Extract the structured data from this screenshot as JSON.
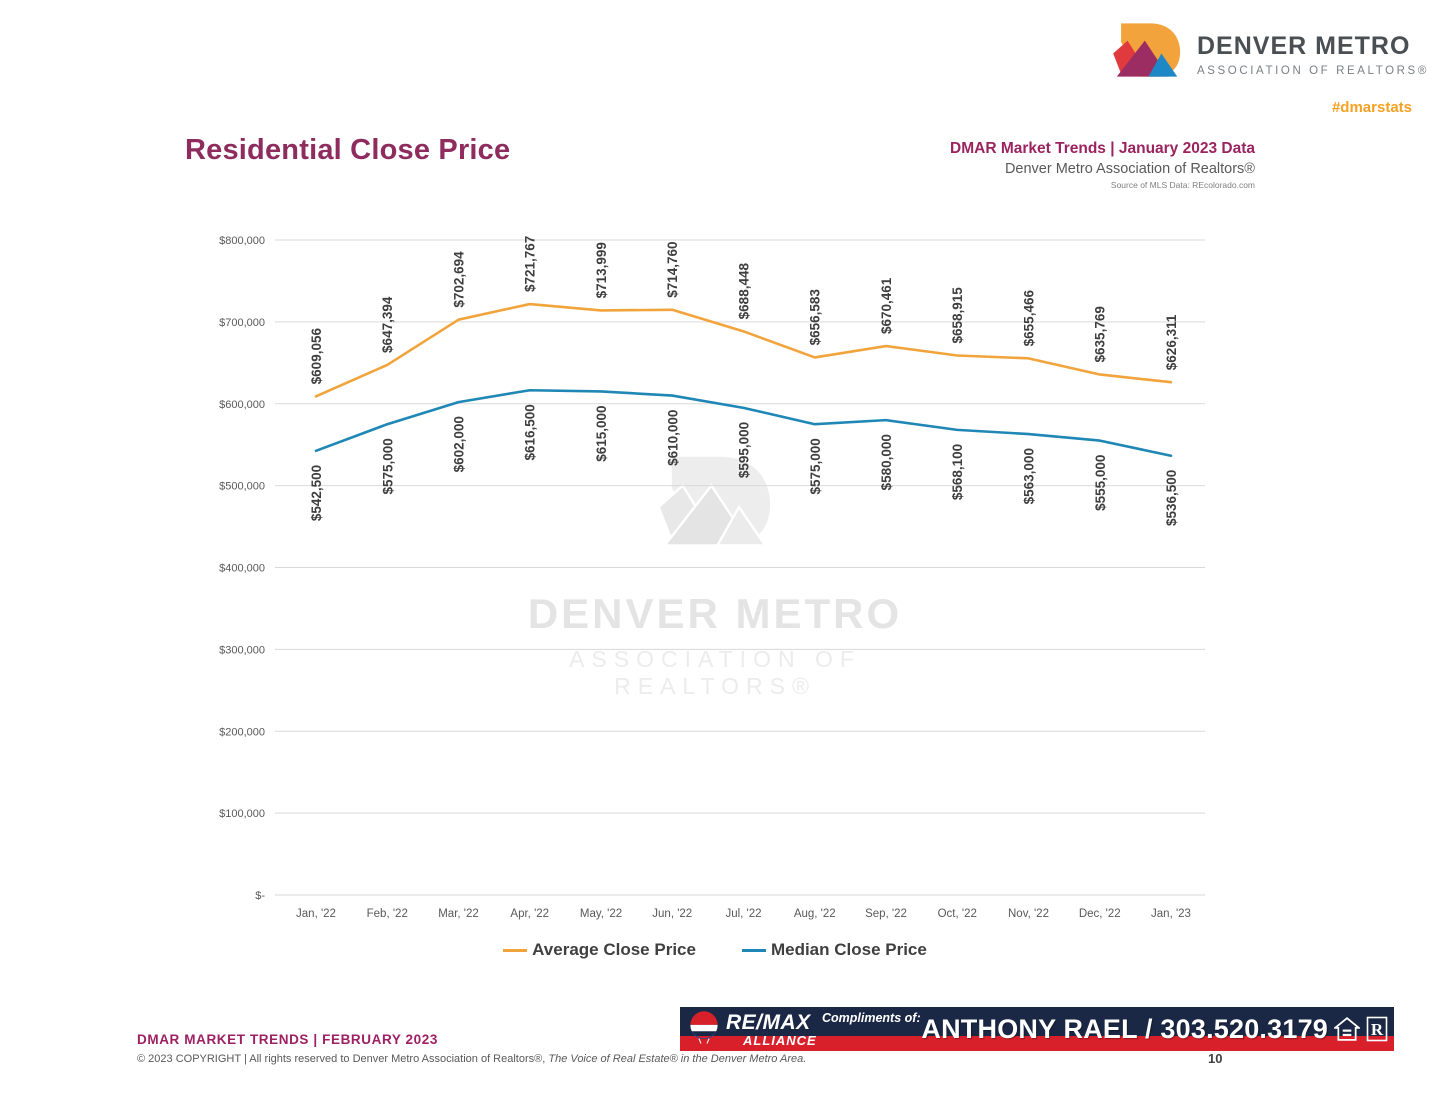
{
  "header": {
    "logo_title": "DENVER METRO",
    "logo_subtitle": "ASSOCIATION OF REALTORS®",
    "hashtag": "#dmarstats"
  },
  "title": "Residential Close Price",
  "subheader": {
    "line1": "DMAR Market Trends | January 2023 Data",
    "line2": "Denver Metro Association of Realtors®",
    "line3": "Source of MLS Data: REcolorado.com"
  },
  "chart_data": {
    "type": "line",
    "categories": [
      "Jan, '22",
      "Feb, '22",
      "Mar, '22",
      "Apr, '22",
      "May, '22",
      "Jun, '22",
      "Jul, '22",
      "Aug, '22",
      "Sep, '22",
      "Oct, '22",
      "Nov, '22",
      "Dec, '22",
      "Jan, '23"
    ],
    "series": [
      {
        "name": "Average Close Price",
        "color": "#f2a43c",
        "values": [
          609056,
          647394,
          702694,
          721767,
          713999,
          714760,
          688448,
          656583,
          670461,
          658915,
          655466,
          635769,
          626311
        ]
      },
      {
        "name": "Median Close Price",
        "color": "#1f87b5",
        "values": [
          542500,
          575000,
          602000,
          616500,
          615000,
          610000,
          595000,
          575000,
          580000,
          568100,
          563000,
          555000,
          536500
        ]
      }
    ],
    "ylim": [
      0,
      800000
    ],
    "ytick_step": 100000,
    "ytick_labels": [
      "$-",
      "$100,000",
      "$200,000",
      "$300,000",
      "$400,000",
      "$500,000",
      "$600,000",
      "$700,000",
      "$800,000"
    ],
    "grid": true,
    "legend_position": "bottom"
  },
  "watermark": {
    "line1": "DENVER METRO",
    "line2": "ASSOCIATION OF REALTORS®"
  },
  "footer": {
    "left_title": "DMAR MARKET TRENDS | FEBRUARY 2023",
    "copyright_plain": "© 2023 COPYRIGHT | All rights reserved to Denver Metro Association of Realtors®, ",
    "copyright_italic": "The Voice of Real Estate® in the Denver Metro Area.",
    "page_number": "10"
  },
  "banner": {
    "brand": "RE/MAX",
    "brand_sub": "ALLIANCE",
    "compliments": "Compliments of:",
    "name_phone": "ANTHONY RAEL / 303.520.3179"
  },
  "colors": {
    "title_berry": "#8e2c5e",
    "header_magenta": "#9b2460",
    "hashtag_orange": "#f5a224",
    "avg_line": "#f2a43c",
    "median_line": "#1f87b5",
    "grid": "#d9d9d9",
    "axis_text": "#595959",
    "data_label": "#3e3e3e",
    "banner_navy": "#1b2845",
    "banner_red": "#d8202a"
  }
}
